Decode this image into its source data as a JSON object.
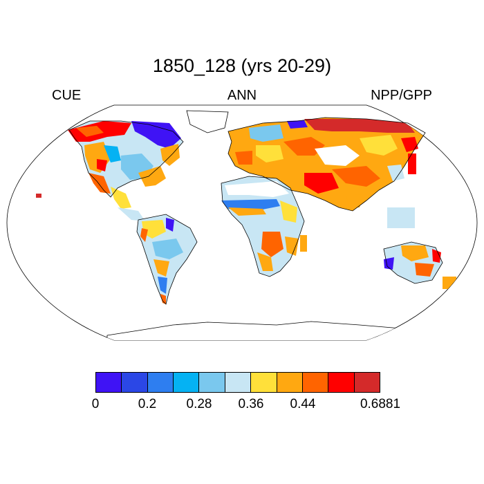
{
  "title": "1850_128 (yrs 20-29)",
  "subtitles": {
    "left": "CUE",
    "center": "ANN",
    "right": "NPP/GPP"
  },
  "colorbar": {
    "colors": [
      "#3f13f5",
      "#2b47e6",
      "#2e7ef0",
      "#05b2f3",
      "#7ac8ee",
      "#c8e6f4",
      "#ffe03a",
      "#ffa811",
      "#ff6400",
      "#ff0000",
      "#d42a2a"
    ],
    "labels": [
      "0",
      "0.2",
      "0.28",
      "0.36",
      "0.44",
      "0.6881"
    ]
  }
}
